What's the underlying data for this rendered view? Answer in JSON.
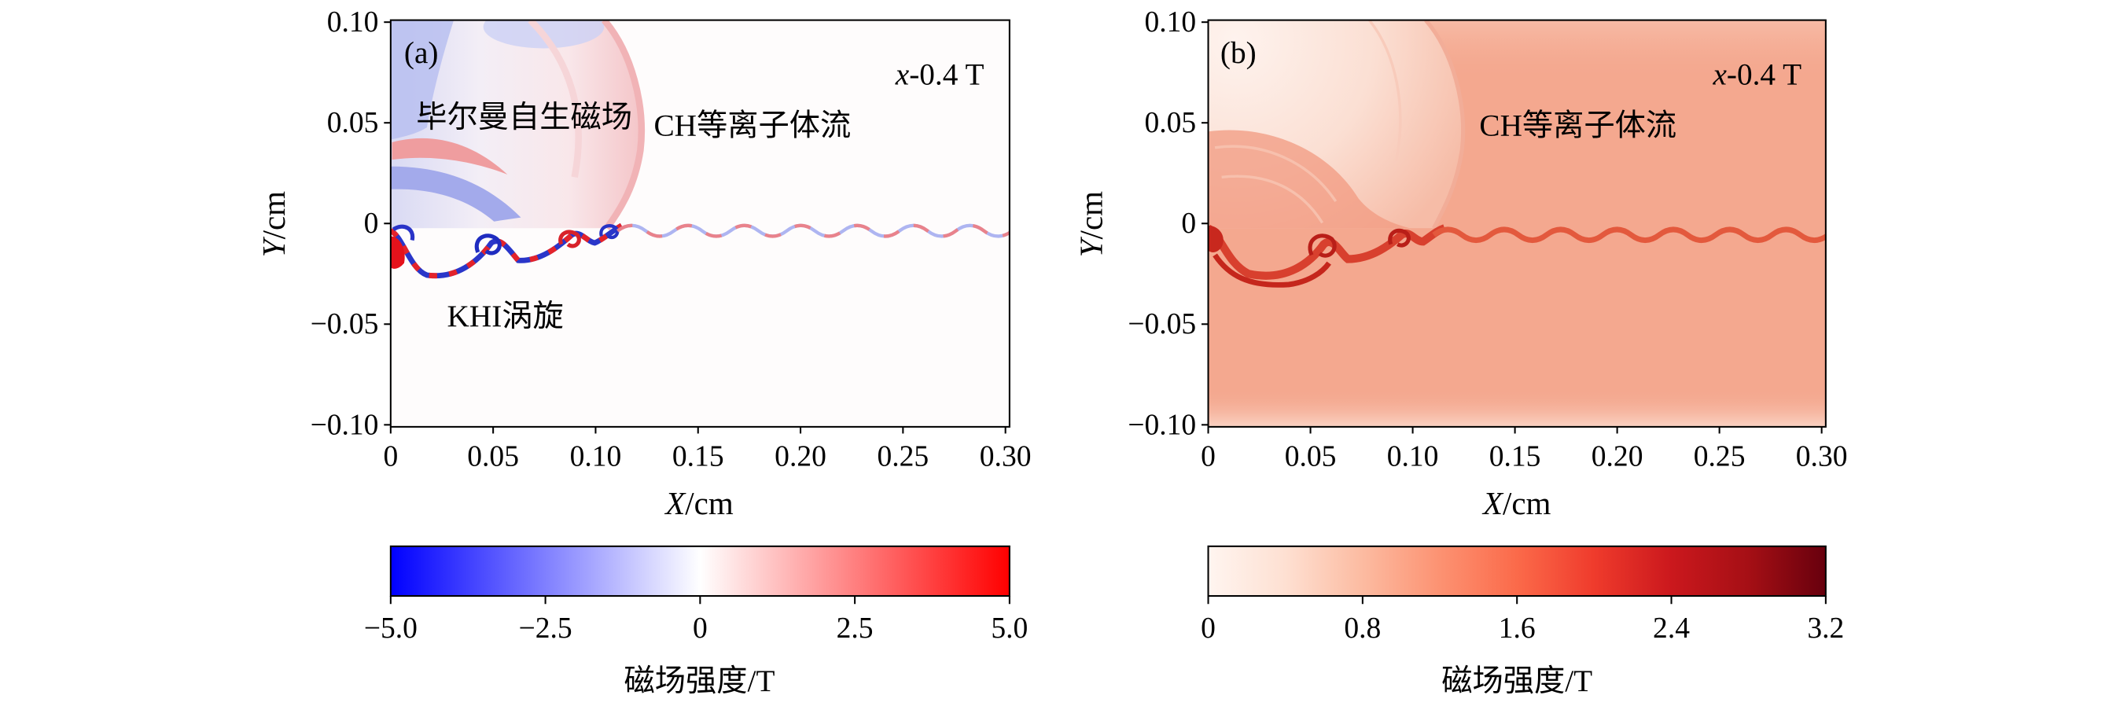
{
  "chart_data": [
    {
      "type": "heatmap",
      "panel_label": "(a)",
      "xlabel": "X/cm",
      "ylabel": "Y/cm",
      "xlim": [
        0,
        0.302
      ],
      "ylim": [
        -0.101,
        0.101
      ],
      "xticks": [
        0,
        0.05,
        0.1,
        0.15,
        0.2,
        0.25,
        0.3
      ],
      "xtick_labels": [
        "0",
        "0.05",
        "0.10",
        "0.15",
        "0.20",
        "0.25",
        "0.30"
      ],
      "yticks": [
        0.1,
        0.05,
        0,
        -0.05,
        -0.1
      ],
      "ytick_labels": [
        "0.10",
        "0.05",
        "0",
        "−0.05",
        "−0.10"
      ],
      "grid": false,
      "annotations": [
        {
          "text": "x-0.4 T"
        },
        {
          "text": "毕尔曼自生磁场"
        },
        {
          "text": "CH等离子体流"
        },
        {
          "text": "KHI涡旋"
        }
      ],
      "colorbar": {
        "label": "磁场强度/T",
        "range": [
          -5.0,
          5.0
        ],
        "ticks": [
          -5.0,
          -2.5,
          0,
          2.5,
          5.0
        ],
        "tick_labels": [
          "−5.0",
          "−2.5",
          "0",
          "2.5",
          "5.0"
        ],
        "colors": [
          "#0000ff",
          "#ffffff",
          "#ff0000"
        ]
      }
    },
    {
      "type": "heatmap",
      "panel_label": "(b)",
      "xlabel": "X/cm",
      "ylabel": "Y/cm",
      "xlim": [
        0,
        0.302
      ],
      "ylim": [
        -0.101,
        0.101
      ],
      "xticks": [
        0,
        0.05,
        0.1,
        0.15,
        0.2,
        0.25,
        0.3
      ],
      "xtick_labels": [
        "0",
        "0.05",
        "0.10",
        "0.15",
        "0.20",
        "0.25",
        "0.30"
      ],
      "yticks": [
        0.1,
        0.05,
        0,
        -0.05,
        -0.1
      ],
      "ytick_labels": [
        "0.10",
        "0.05",
        "0",
        "−0.05",
        "−0.10"
      ],
      "grid": false,
      "annotations": [
        {
          "text": "x-0.4 T"
        },
        {
          "text": "CH等离子体流"
        }
      ],
      "colorbar": {
        "label": "磁场强度/T",
        "range": [
          0,
          3.2
        ],
        "ticks": [
          0,
          0.8,
          1.6,
          2.4,
          3.2
        ],
        "tick_labels": [
          "0",
          "0.8",
          "1.6",
          "2.4",
          "3.2"
        ],
        "colors": [
          "#fff5f0",
          "#fee0d2",
          "#fcbba1",
          "#fc9272",
          "#fb6a4a",
          "#ef3b2c",
          "#cb181d",
          "#a50f15",
          "#67000d"
        ]
      }
    }
  ]
}
